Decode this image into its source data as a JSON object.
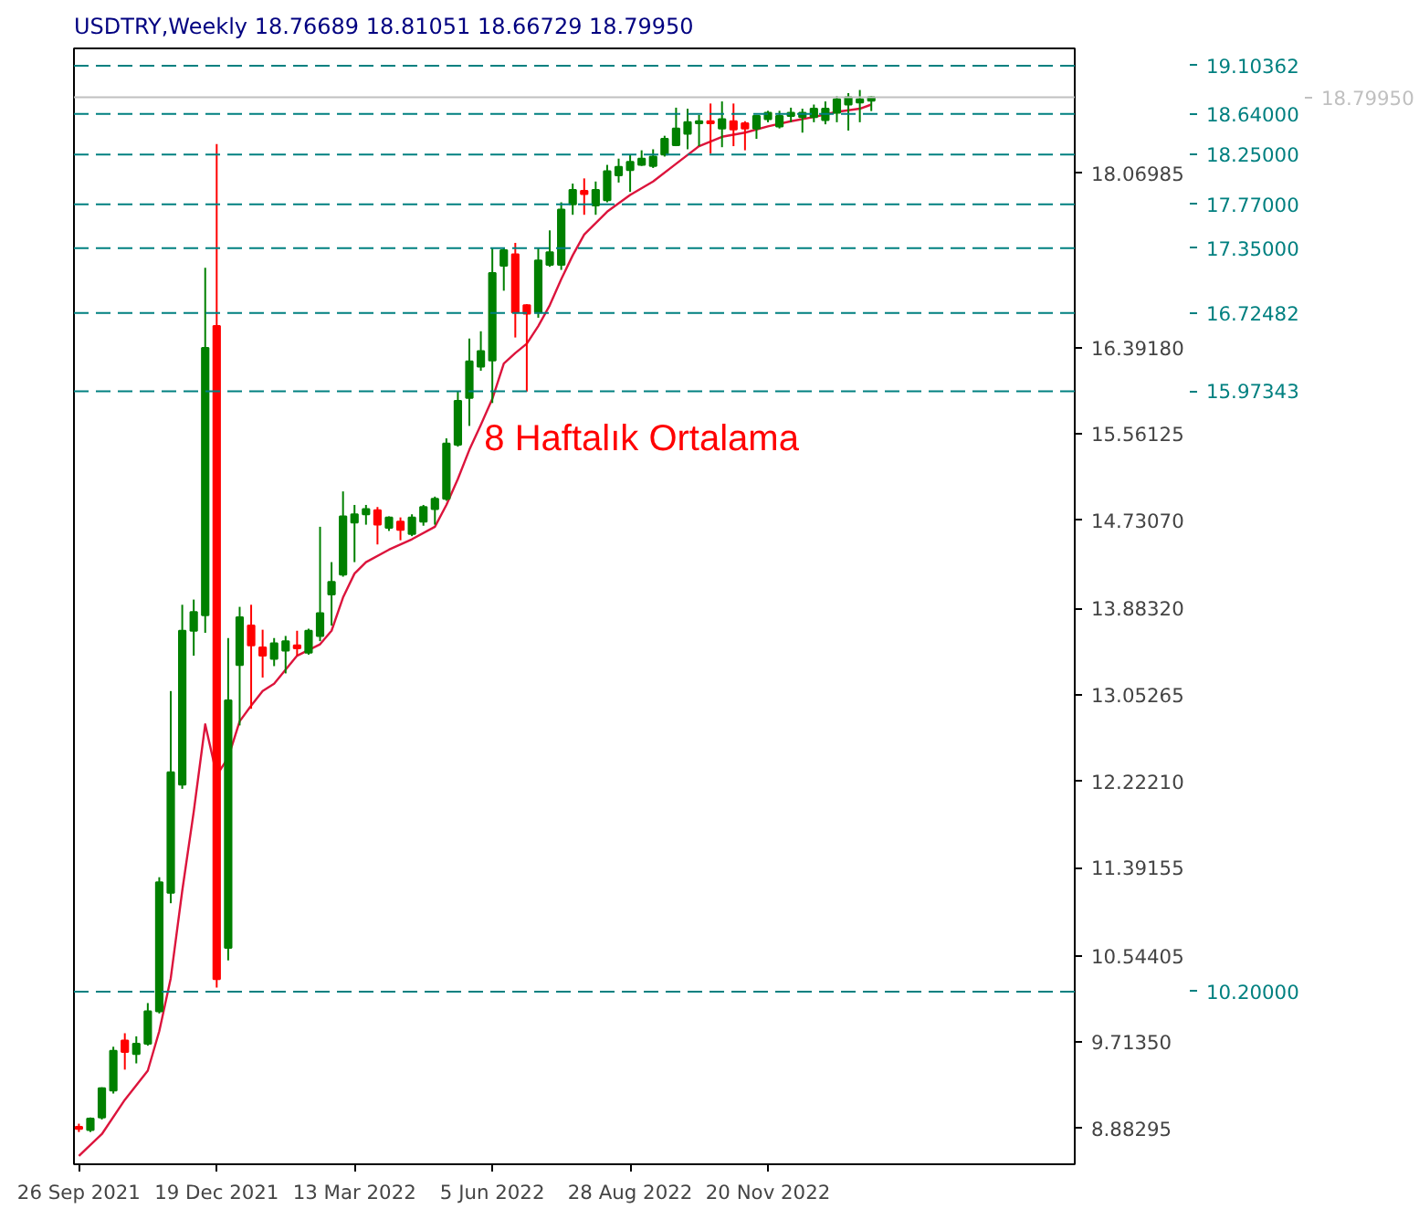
{
  "chart_data": {
    "type": "candlestick",
    "title": "USDTRY,Weekly  18.76689 18.81051 18.66729 18.79950",
    "x": [
      "2021-09-26",
      "2021-10-03",
      "2021-10-10",
      "2021-10-17",
      "2021-10-24",
      "2021-10-31",
      "2021-11-07",
      "2021-11-14",
      "2021-11-21",
      "2021-11-28",
      "2021-12-05",
      "2021-12-12",
      "2021-12-19",
      "2021-12-26",
      "2022-01-02",
      "2022-01-09",
      "2022-01-16",
      "2022-01-23",
      "2022-01-30",
      "2022-02-06",
      "2022-02-13",
      "2022-02-20",
      "2022-02-27",
      "2022-03-06",
      "2022-03-13",
      "2022-03-20",
      "2022-03-27",
      "2022-04-03",
      "2022-04-10",
      "2022-04-17",
      "2022-04-24",
      "2022-05-01",
      "2022-05-08",
      "2022-05-15",
      "2022-05-22",
      "2022-05-29",
      "2022-06-05",
      "2022-06-12",
      "2022-06-19",
      "2022-06-26",
      "2022-07-03",
      "2022-07-10",
      "2022-07-17",
      "2022-07-24",
      "2022-07-31",
      "2022-08-07",
      "2022-08-14",
      "2022-08-21",
      "2022-08-28",
      "2022-09-04",
      "2022-09-11",
      "2022-09-18",
      "2022-09-25",
      "2022-10-02",
      "2022-10-09",
      "2022-10-16",
      "2022-10-23",
      "2022-10-30",
      "2022-11-06",
      "2022-11-13",
      "2022-11-20",
      "2022-11-27",
      "2022-12-04",
      "2022-12-11",
      "2022-12-18",
      "2022-12-25",
      "2023-01-01",
      "2023-01-08",
      "2023-01-15",
      "2023-01-22"
    ],
    "ohlc": [
      [
        8.9,
        8.93,
        8.85,
        8.88
      ],
      [
        8.87,
        8.99,
        8.85,
        8.98
      ],
      [
        8.99,
        9.28,
        8.97,
        9.27
      ],
      [
        9.25,
        9.67,
        9.22,
        9.63
      ],
      [
        9.73,
        9.8,
        9.45,
        9.62
      ],
      [
        9.6,
        9.77,
        9.51,
        9.7
      ],
      [
        9.7,
        10.09,
        9.68,
        10.01
      ],
      [
        10.01,
        11.3,
        9.99,
        11.25
      ],
      [
        11.15,
        13.09,
        11.05,
        12.31
      ],
      [
        12.19,
        13.92,
        12.15,
        13.67
      ],
      [
        13.67,
        13.97,
        13.43,
        13.85
      ],
      [
        13.82,
        17.16,
        13.65,
        16.39
      ],
      [
        16.6,
        18.35,
        10.24,
        10.32
      ],
      [
        10.62,
        13.6,
        10.5,
        13.0
      ],
      [
        13.34,
        13.9,
        12.76,
        13.8
      ],
      [
        13.72,
        13.92,
        12.92,
        13.53
      ],
      [
        13.51,
        13.68,
        13.22,
        13.43
      ],
      [
        13.4,
        13.6,
        13.33,
        13.55
      ],
      [
        13.48,
        13.62,
        13.26,
        13.57
      ],
      [
        13.53,
        13.67,
        13.43,
        13.5
      ],
      [
        13.46,
        13.69,
        13.44,
        13.67
      ],
      [
        13.62,
        14.67,
        13.57,
        13.84
      ],
      [
        14.02,
        14.33,
        13.72,
        14.14
      ],
      [
        14.21,
        15.01,
        14.19,
        14.77
      ],
      [
        14.71,
        14.88,
        14.33,
        14.79
      ],
      [
        14.79,
        14.88,
        14.69,
        14.84
      ],
      [
        14.83,
        14.86,
        14.5,
        14.69
      ],
      [
        14.66,
        14.77,
        14.63,
        14.76
      ],
      [
        14.72,
        14.76,
        14.54,
        14.64
      ],
      [
        14.6,
        14.79,
        14.58,
        14.76
      ],
      [
        14.72,
        14.88,
        14.68,
        14.86
      ],
      [
        14.84,
        14.96,
        14.69,
        14.94
      ],
      [
        14.94,
        15.52,
        14.92,
        15.47
      ],
      [
        15.46,
        15.97,
        15.44,
        15.88
      ],
      [
        15.91,
        16.48,
        15.64,
        16.26
      ],
      [
        16.21,
        16.55,
        16.17,
        16.36
      ],
      [
        16.27,
        17.35,
        15.86,
        17.11
      ],
      [
        17.18,
        17.35,
        16.94,
        17.33
      ],
      [
        17.29,
        17.4,
        16.49,
        16.73
      ],
      [
        16.8,
        16.81,
        15.97,
        16.72
      ],
      [
        16.73,
        17.35,
        16.68,
        17.23
      ],
      [
        17.19,
        17.52,
        17.17,
        17.31
      ],
      [
        17.19,
        17.79,
        17.14,
        17.72
      ],
      [
        17.77,
        17.97,
        17.67,
        17.91
      ],
      [
        17.9,
        18.02,
        17.67,
        17.87
      ],
      [
        17.76,
        17.99,
        17.67,
        17.91
      ],
      [
        17.81,
        18.15,
        17.79,
        18.09
      ],
      [
        18.05,
        18.21,
        17.98,
        18.13
      ],
      [
        18.1,
        18.25,
        17.89,
        18.18
      ],
      [
        18.15,
        18.29,
        18.14,
        18.21
      ],
      [
        18.14,
        18.3,
        18.12,
        18.23
      ],
      [
        18.25,
        18.43,
        18.23,
        18.4
      ],
      [
        18.34,
        18.7,
        18.33,
        18.5
      ],
      [
        18.45,
        18.69,
        18.3,
        18.56
      ],
      [
        18.55,
        18.63,
        18.33,
        18.57
      ],
      [
        18.57,
        18.74,
        18.26,
        18.55
      ],
      [
        18.5,
        18.76,
        18.32,
        18.59
      ],
      [
        18.57,
        18.74,
        18.33,
        18.49
      ],
      [
        18.55,
        18.57,
        18.29,
        18.5
      ],
      [
        18.5,
        18.63,
        18.4,
        18.62
      ],
      [
        18.59,
        18.67,
        18.56,
        18.65
      ],
      [
        18.52,
        18.67,
        18.5,
        18.62
      ],
      [
        18.62,
        18.7,
        18.56,
        18.65
      ],
      [
        18.61,
        18.69,
        18.46,
        18.65
      ],
      [
        18.61,
        18.73,
        18.56,
        18.69
      ],
      [
        18.58,
        18.76,
        18.54,
        18.69
      ],
      [
        18.65,
        18.81,
        18.56,
        18.78
      ],
      [
        18.73,
        18.84,
        18.48,
        18.8
      ],
      [
        18.75,
        18.87,
        18.56,
        18.78
      ],
      [
        18.76689,
        18.81051,
        18.66729,
        18.7995
      ]
    ],
    "colors": [
      "#ff0000",
      "#008000",
      "#008000",
      "#008000",
      "#ff0000",
      "#008000",
      "#008000",
      "#008000",
      "#008000",
      "#008000",
      "#008000",
      "#008000",
      "#ff0000",
      "#008000",
      "#008000",
      "#ff0000",
      "#ff0000",
      "#008000",
      "#008000",
      "#ff0000",
      "#008000",
      "#008000",
      "#008000",
      "#008000",
      "#008000",
      "#008000",
      "#ff0000",
      "#008000",
      "#ff0000",
      "#008000",
      "#008000",
      "#008000",
      "#008000",
      "#008000",
      "#008000",
      "#008000",
      "#008000",
      "#008000",
      "#ff0000",
      "#ff0000",
      "#008000",
      "#008000",
      "#008000",
      "#008000",
      "#ff0000",
      "#008000",
      "#008000",
      "#008000",
      "#008000",
      "#008000",
      "#008000",
      "#008000",
      "#008000",
      "#008000",
      "#008000",
      "#ff0000",
      "#008000",
      "#ff0000",
      "#ff0000",
      "#008000",
      "#008000",
      "#008000",
      "#008000",
      "#008000",
      "#008000",
      "#008000",
      "#008000",
      "#008000",
      "#008000",
      "#008000"
    ],
    "series": [
      {
        "type": "line",
        "color": "#dc143c",
        "x": [
          "2021-09-26",
          "2021-10-10",
          "2021-10-24",
          "2021-11-07",
          "2021-11-14",
          "2021-11-21",
          "2021-11-28",
          "2021-12-05",
          "2021-12-12",
          "2021-12-19",
          "2021-12-26",
          "2022-01-02",
          "2022-01-09",
          "2022-01-16",
          "2022-01-23",
          "2022-02-06",
          "2022-02-20",
          "2022-02-27",
          "2022-03-06",
          "2022-03-13",
          "2022-03-20",
          "2022-04-03",
          "2022-04-17",
          "2022-05-01",
          "2022-05-08",
          "2022-05-15",
          "2022-05-22",
          "2022-05-29",
          "2022-06-05",
          "2022-06-12",
          "2022-06-19",
          "2022-06-26",
          "2022-07-03",
          "2022-07-10",
          "2022-07-17",
          "2022-07-24",
          "2022-07-31",
          "2022-08-14",
          "2022-08-28",
          "2022-09-11",
          "2022-09-25",
          "2022-10-09",
          "2022-10-23",
          "2022-11-06",
          "2022-11-20",
          "2022-12-04",
          "2022-12-18",
          "2023-01-01",
          "2023-01-15",
          "2023-01-22"
        ],
        "values": [
          8.62,
          8.83,
          9.16,
          9.44,
          9.82,
          10.33,
          11.17,
          11.93,
          12.77,
          12.28,
          12.45,
          12.8,
          12.95,
          13.09,
          13.16,
          13.43,
          13.54,
          13.67,
          13.99,
          14.22,
          14.33,
          14.45,
          14.55,
          14.67,
          14.88,
          15.13,
          15.41,
          15.65,
          15.9,
          16.24,
          16.34,
          16.43,
          16.6,
          16.8,
          17.05,
          17.28,
          17.48,
          17.7,
          17.86,
          17.99,
          18.16,
          18.33,
          18.42,
          18.46,
          18.52,
          18.57,
          18.61,
          18.66,
          18.69,
          18.73
        ]
      }
    ],
    "xlim": [
      "2021-09-23",
      "2023-05-26"
    ],
    "xticks": [
      {
        "value": "2021-09-26",
        "label": "26 Sep 2021"
      },
      {
        "value": "2021-12-19",
        "label": "19 Dec 2021"
      },
      {
        "value": "2022-03-13",
        "label": "13 Mar 2022"
      },
      {
        "value": "2022-06-05",
        "label": "5 Jun 2022"
      },
      {
        "value": "2022-08-28",
        "label": "28 Aug 2022"
      },
      {
        "value": "2022-11-20",
        "label": "20 Nov 2022"
      }
    ],
    "ylim": [
      8.54,
      19.27
    ],
    "yticks": [
      {
        "value": 8.88295,
        "label": "8.88295"
      },
      {
        "value": 9.7135,
        "label": "9.71350"
      },
      {
        "value": 10.54405,
        "label": "10.54405"
      },
      {
        "value": 11.39155,
        "label": "11.39155"
      },
      {
        "value": 12.2221,
        "label": "12.22210"
      },
      {
        "value": 13.05265,
        "label": "13.05265"
      },
      {
        "value": 13.8832,
        "label": "13.88320"
      },
      {
        "value": 14.7307,
        "label": "14.73070"
      },
      {
        "value": 15.56125,
        "label": "15.56125"
      },
      {
        "value": 16.3918,
        "label": "16.39180"
      },
      {
        "value": 18.06985,
        "label": "18.06985"
      }
    ],
    "ref_lines": [
      {
        "axis": "y",
        "value": 19.10362,
        "label": "19.10362",
        "color": "#008080",
        "line_style": "dashed"
      },
      {
        "axis": "y",
        "value": 18.7995,
        "label": "18.79950",
        "color": "#c0c0c0",
        "line_style": "solid"
      },
      {
        "axis": "y",
        "value": 18.64,
        "label": "18.64000",
        "color": "#008080",
        "line_style": "dashed"
      },
      {
        "axis": "y",
        "value": 18.25,
        "label": "18.25000",
        "color": "#008080",
        "line_style": "dashed"
      },
      {
        "axis": "y",
        "value": 17.77,
        "label": "17.77000",
        "color": "#008080",
        "line_style": "dashed"
      },
      {
        "axis": "y",
        "value": 17.35,
        "label": "17.35000",
        "color": "#008080",
        "line_style": "dashed"
      },
      {
        "axis": "y",
        "value": 16.72482,
        "label": "16.72482",
        "color": "#008080",
        "line_style": "dashed"
      },
      {
        "axis": "y",
        "value": 15.97343,
        "label": "15.97343",
        "color": "#008080",
        "line_style": "dashed"
      },
      {
        "axis": "y",
        "value": 10.2,
        "label": "10.20000",
        "color": "#008080",
        "line_style": "dashed"
      }
    ],
    "annotations": [
      "8 Haftalık Ortalama"
    ],
    "grid": false
  }
}
